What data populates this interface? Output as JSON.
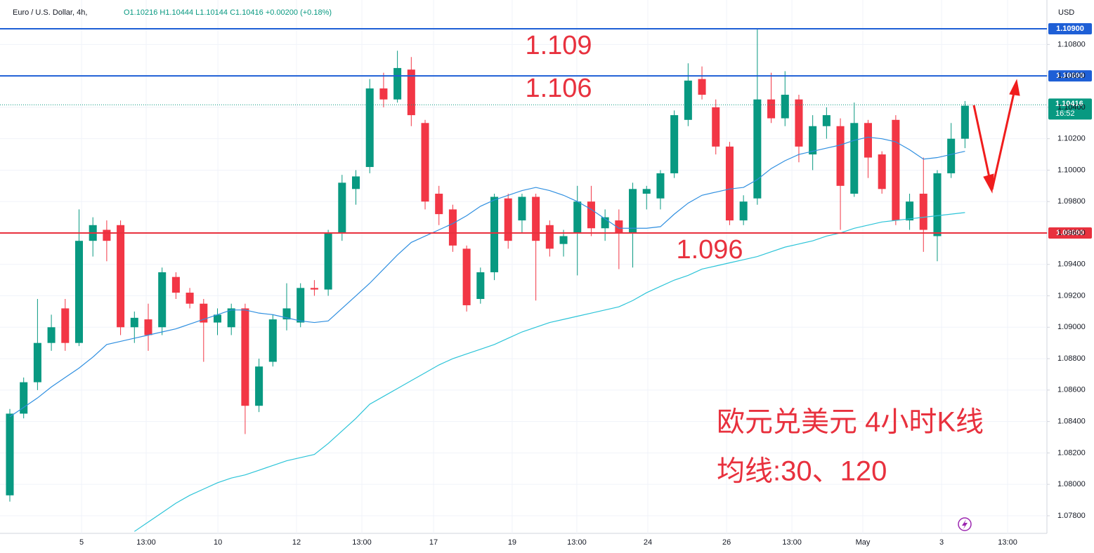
{
  "chart_data": {
    "type": "candlestick",
    "title": "Euro / U.S. Dollar, 4h,",
    "ohlc_text": "O1.10216 H1.10444 L1.10144 C1.10416 +0.00200 (+0.18%)",
    "currency": "USD",
    "up_color": "#089981",
    "down_color": "#f23645",
    "open": [
      1.0793,
      1.0845,
      1.0865,
      1.089,
      1.0912,
      1.089,
      1.0955,
      1.0962,
      1.0965,
      1.09,
      1.0905,
      1.09,
      1.0932,
      1.0922,
      1.0915,
      1.0903,
      1.09,
      1.0912,
      1.085,
      1.0878,
      1.0905,
      1.0903,
      1.0925,
      1.0924,
      1.096,
      1.0988,
      1.1002,
      1.1052,
      1.1045,
      1.1064,
      1.103,
      1.0985,
      1.0975,
      1.095,
      1.0918,
      1.0935,
      1.0982,
      1.0968,
      1.0983,
      1.0965,
      1.0953,
      1.096,
      1.098,
      1.0963,
      1.0968,
      1.096,
      1.0985,
      1.0982,
      1.0998,
      1.1032,
      1.1058,
      1.104,
      1.1015,
      1.0968,
      1.0982,
      1.1045,
      1.1033,
      1.1045,
      1.101,
      1.1028,
      1.1028,
      1.0985,
      1.103,
      1.101,
      1.1032,
      1.0968,
      1.0985,
      1.0958,
      1.0998,
      1.102
    ],
    "high": [
      1.0848,
      1.0868,
      1.0918,
      1.0908,
      1.0918,
      1.0975,
      1.097,
      1.0968,
      1.0968,
      1.091,
      1.0915,
      1.0938,
      1.0935,
      1.0925,
      1.0918,
      1.0912,
      1.0915,
      1.0915,
      1.088,
      1.0908,
      1.0928,
      1.0928,
      1.093,
      1.0962,
      1.0997,
      1.1,
      1.1058,
      1.1062,
      1.1076,
      1.1072,
      1.1032,
      1.099,
      1.0978,
      1.0952,
      1.0938,
      1.0985,
      1.0985,
      1.0985,
      1.0985,
      1.0968,
      1.0962,
      1.099,
      1.099,
      1.0975,
      1.0975,
      1.0992,
      1.099,
      1.1,
      1.1038,
      1.1068,
      1.1066,
      1.1045,
      1.1018,
      1.0984,
      1.109,
      1.1062,
      1.1063,
      1.1048,
      1.1035,
      1.104,
      1.1033,
      1.1043,
      1.1032,
      1.1012,
      1.1035,
      1.0985,
      1.1008,
      1.1,
      1.103,
      1.1044
    ],
    "low": [
      1.0789,
      1.0842,
      1.086,
      1.0885,
      1.0885,
      1.0888,
      1.0945,
      1.0942,
      1.0895,
      1.089,
      1.0885,
      1.0895,
      1.0918,
      1.0912,
      1.0878,
      1.0895,
      1.0895,
      1.0832,
      1.0846,
      1.0875,
      1.0898,
      1.09,
      1.092,
      1.092,
      1.0955,
      1.0978,
      1.0998,
      1.104,
      1.1043,
      1.1028,
      1.0975,
      1.0965,
      1.0948,
      1.091,
      1.0915,
      1.093,
      1.095,
      1.096,
      1.0917,
      1.0945,
      1.0945,
      1.0933,
      1.0958,
      1.0955,
      1.0937,
      1.0938,
      1.0975,
      1.0975,
      1.0995,
      1.1028,
      1.1045,
      1.101,
      1.0965,
      1.0965,
      1.0978,
      1.103,
      1.1028,
      1.1005,
      1.1,
      1.102,
      1.0962,
      1.0983,
      1.0995,
      1.0985,
      1.0965,
      1.0962,
      1.0948,
      1.0942,
      1.0995,
      1.1014
    ],
    "close": [
      1.0845,
      1.0865,
      1.089,
      1.09,
      1.089,
      1.0955,
      1.0965,
      1.0955,
      1.09,
      1.0906,
      1.0895,
      1.0935,
      1.0922,
      1.0915,
      1.0903,
      1.0908,
      1.0912,
      1.085,
      1.0875,
      1.0905,
      1.0912,
      1.0925,
      1.0924,
      1.096,
      1.0992,
      1.0996,
      1.1052,
      1.1045,
      1.1065,
      1.1035,
      1.098,
      1.0972,
      1.0952,
      1.0914,
      1.0935,
      1.0983,
      1.0955,
      1.0983,
      1.0955,
      1.095,
      1.0958,
      1.098,
      1.0963,
      1.097,
      1.096,
      1.0988,
      1.0988,
      1.0998,
      1.1035,
      1.1057,
      1.1048,
      1.1015,
      1.0968,
      1.098,
      1.1045,
      1.1033,
      1.1048,
      1.1015,
      1.1028,
      1.1035,
      1.099,
      1.103,
      1.1008,
      1.0988,
      1.0968,
      1.098,
      1.0962,
      1.0998,
      1.102,
      1.1041
    ],
    "series": [
      {
        "name": "MA30",
        "color": "#2f8fe0",
        "values": [
          1.0843,
          1.0849,
          1.0855,
          1.0862,
          1.0868,
          1.0874,
          1.0881,
          1.0889,
          1.0891,
          1.0893,
          1.0895,
          1.0897,
          1.0899,
          1.0902,
          1.0905,
          1.0908,
          1.0911,
          1.0911,
          1.0909,
          1.0908,
          1.0906,
          1.0904,
          1.0903,
          1.0904,
          1.0912,
          1.092,
          1.0928,
          1.0937,
          1.0946,
          1.0954,
          1.0958,
          1.0962,
          1.0966,
          1.0971,
          1.0977,
          1.0981,
          1.0984,
          1.0987,
          1.0989,
          1.0987,
          1.0984,
          1.098,
          1.0975,
          1.0969,
          1.0963,
          1.0963,
          1.0963,
          1.0964,
          1.0972,
          1.0979,
          1.0984,
          1.0986,
          1.0988,
          1.0989,
          1.0994,
          1.1001,
          1.1006,
          1.101,
          1.1012,
          1.1014,
          1.1016,
          1.1019,
          1.1021,
          1.102,
          1.1018,
          1.1013,
          1.1007,
          1.1008,
          1.101,
          1.1012
        ]
      },
      {
        "name": "MA120",
        "color": "#2cc4d8",
        "values": [
          null,
          null,
          null,
          null,
          null,
          null,
          null,
          null,
          null,
          1.077,
          1.0776,
          1.0782,
          1.0788,
          1.0793,
          1.0797,
          1.0801,
          1.0804,
          1.0806,
          1.0809,
          1.0812,
          1.0815,
          1.0817,
          1.0819,
          1.0826,
          1.0834,
          1.0842,
          1.0851,
          1.0856,
          1.0861,
          1.0866,
          1.0871,
          1.0876,
          1.088,
          1.0883,
          1.0886,
          1.0889,
          1.0893,
          1.0897,
          1.09,
          1.0903,
          1.0905,
          1.0907,
          1.0909,
          1.0911,
          1.0913,
          1.0917,
          1.0922,
          1.0926,
          1.093,
          1.0933,
          1.0937,
          1.0939,
          1.0941,
          1.0943,
          1.0945,
          1.0948,
          1.0951,
          1.0953,
          1.0955,
          1.0958,
          1.096,
          1.0963,
          1.0965,
          1.0967,
          1.0968,
          1.0969,
          1.097,
          1.0971,
          1.0972,
          1.0973
        ]
      }
    ],
    "xlim": [
      -0.71,
      74.92
    ],
    "xticks": [
      {
        "value": 5.18,
        "label": "5"
      },
      {
        "value": 9.85,
        "label": "13:00"
      },
      {
        "value": 15.03,
        "label": "10"
      },
      {
        "value": 20.71,
        "label": "12"
      },
      {
        "value": 25.43,
        "label": "13:00"
      },
      {
        "value": 30.61,
        "label": "17"
      },
      {
        "value": 36.29,
        "label": "19"
      },
      {
        "value": 40.96,
        "label": "13:00"
      },
      {
        "value": 46.09,
        "label": "24"
      },
      {
        "value": 51.78,
        "label": "26"
      },
      {
        "value": 56.5,
        "label": "13:00"
      },
      {
        "value": 61.62,
        "label": "May"
      },
      {
        "value": 67.31,
        "label": "3"
      },
      {
        "value": 72.08,
        "label": "13:00"
      }
    ],
    "ylim": [
      1.07688,
      1.11083
    ],
    "yticks": [
      {
        "value": 1.078,
        "label": "1.07800"
      },
      {
        "value": 1.08,
        "label": "1.08000"
      },
      {
        "value": 1.082,
        "label": "1.08200"
      },
      {
        "value": 1.084,
        "label": "1.08400"
      },
      {
        "value": 1.086,
        "label": "1.08600"
      },
      {
        "value": 1.088,
        "label": "1.08800"
      },
      {
        "value": 1.09,
        "label": "1.09000"
      },
      {
        "value": 1.092,
        "label": "1.09200"
      },
      {
        "value": 1.094,
        "label": "1.09400"
      },
      {
        "value": 1.096,
        "label": "1.09600"
      },
      {
        "value": 1.098,
        "label": "1.09800"
      },
      {
        "value": 1.1,
        "label": "1.10000"
      },
      {
        "value": 1.102,
        "label": "1.10200"
      },
      {
        "value": 1.104,
        "label": "1.10400"
      },
      {
        "value": 1.106,
        "label": "1.10600"
      },
      {
        "value": 1.108,
        "label": "1.10800"
      }
    ],
    "levels": [
      {
        "value": 1.109,
        "label": "1.10900",
        "color": "#1e5fd6",
        "annotation": "1.109"
      },
      {
        "value": 1.106,
        "label": "1.10600",
        "color": "#1e5fd6",
        "annotation": "1.106"
      },
      {
        "value": 1.096,
        "label": "1.09600",
        "color": "#e8313e",
        "annotation": "1.096"
      }
    ],
    "last_price": {
      "value": 1.10416,
      "label": "1.10416",
      "time": "16:52"
    },
    "notes": [
      "欧元兑美元 4小时K线",
      "均线:30、120"
    ]
  }
}
